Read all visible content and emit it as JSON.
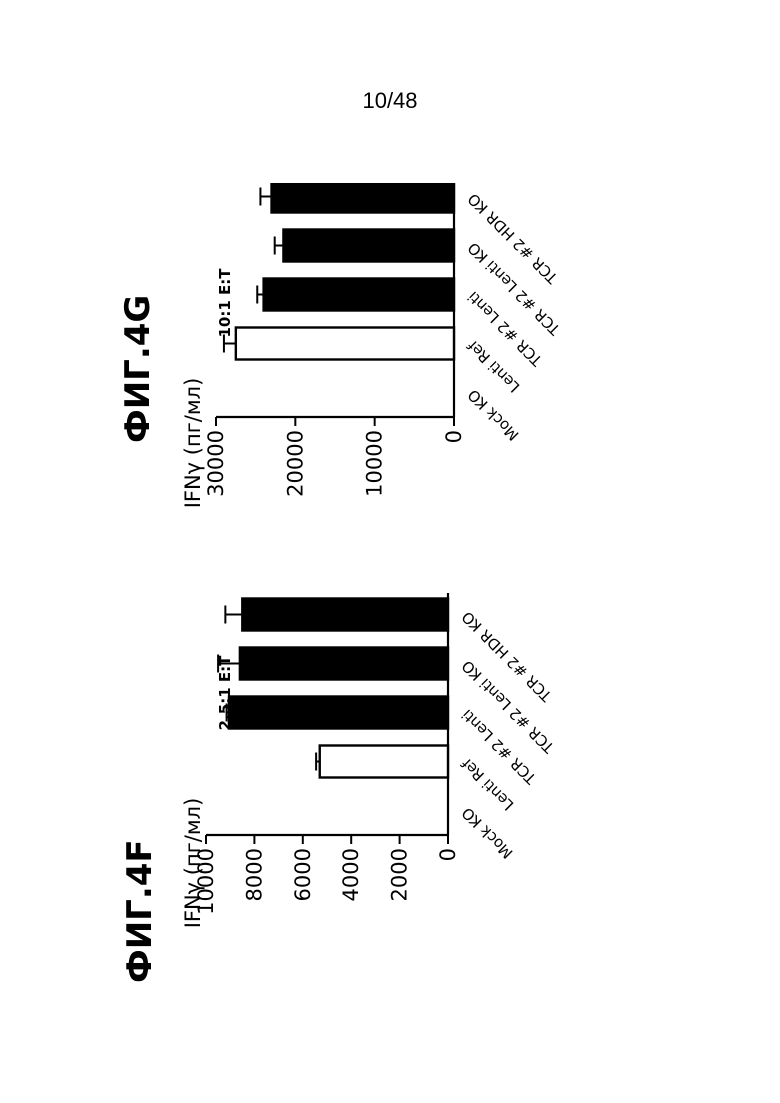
{
  "page": {
    "number": "10/48"
  },
  "chart_data": [
    {
      "type": "bar",
      "figure_label": "ФИГ.4F",
      "subtitle": "2.5:1 E:T",
      "ylabel": "IFNγ (пг/мл)",
      "xlabel": "",
      "categories": [
        "Mock KO",
        "Lenti Ref",
        "TCR #2 Lenti",
        "TCR #2 Lenti KO",
        "TCR #2 HDR KO"
      ],
      "values": [
        0,
        5300,
        9050,
        8600,
        8500
      ],
      "errors": [
        0,
        150,
        100,
        900,
        700
      ],
      "fills": [
        "#ffffff",
        "#ffffff",
        "#000000",
        "#000000",
        "#000000"
      ],
      "ylim": [
        0,
        10000
      ],
      "yticks": [
        "0",
        "2000",
        "4000",
        "6000",
        "8000",
        "10000"
      ],
      "ytick_values": [
        0,
        2000,
        4000,
        6000,
        8000,
        10000
      ]
    },
    {
      "type": "bar",
      "figure_label": "ФИГ.4G",
      "subtitle": "10:1 E:T",
      "ylabel": "IFNγ (пг/мл)",
      "xlabel": "",
      "categories": [
        "Mock KO",
        "Lenti Ref",
        "TCR #2 Lenti",
        "TCR #2 Lenti KO",
        "TCR #2 HDR KO"
      ],
      "values": [
        0,
        27500,
        24000,
        21500,
        23000
      ],
      "errors": [
        0,
        1500,
        800,
        1100,
        1400
      ],
      "fills": [
        "#ffffff",
        "#ffffff",
        "#000000",
        "#000000",
        "#000000"
      ],
      "ylim": [
        0,
        30000
      ],
      "yticks": [
        "0",
        "10000",
        "20000",
        "30000"
      ],
      "ytick_values": [
        0,
        10000,
        20000,
        30000
      ]
    }
  ]
}
